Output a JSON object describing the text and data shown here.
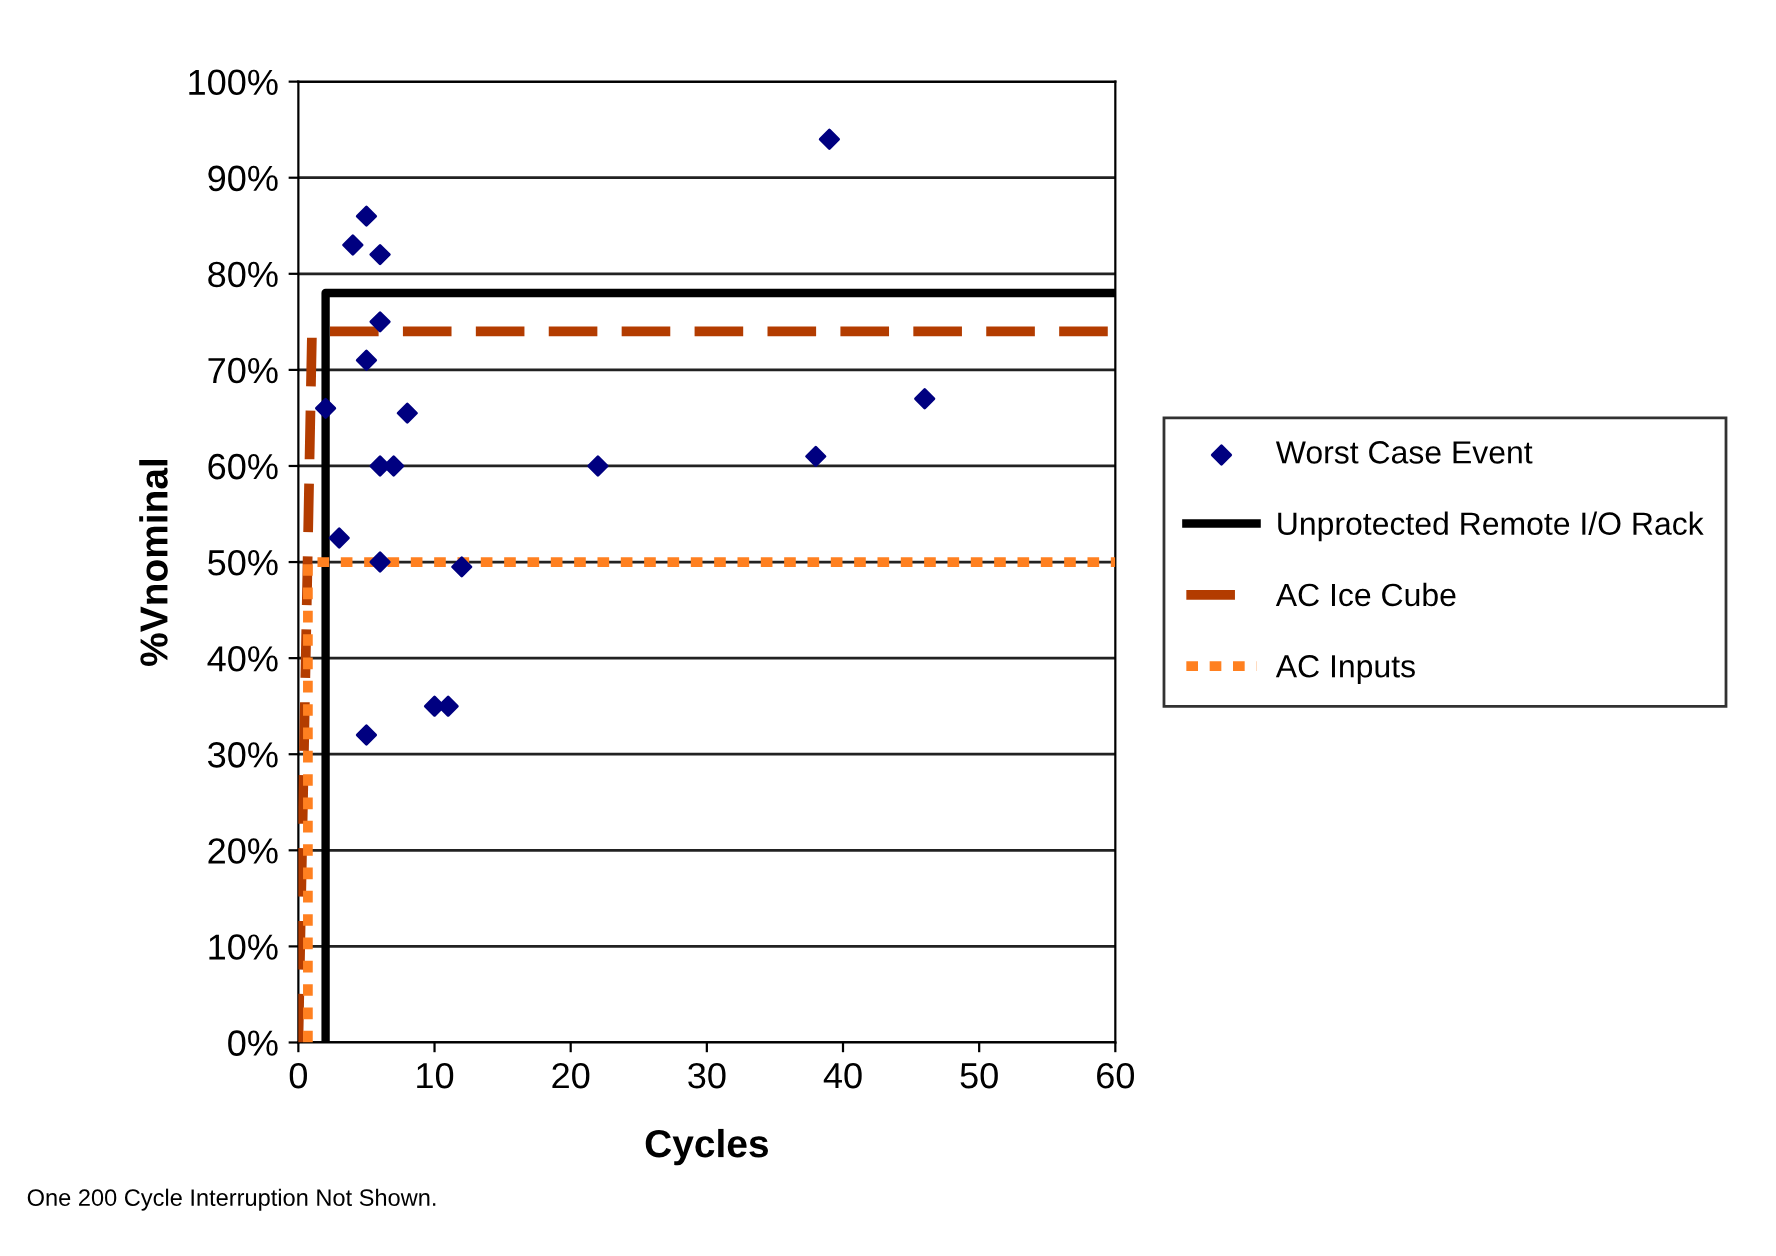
{
  "chart_data": {
    "type": "scatter",
    "xlabel": "Cycles",
    "ylabel": "%Vnominal",
    "xlim": [
      0,
      60
    ],
    "xticks": [
      0,
      10,
      20,
      30,
      40,
      50,
      60
    ],
    "ylim": [
      0,
      100
    ],
    "yticks": [
      {
        "value": 0,
        "label": "0%"
      },
      {
        "value": 10,
        "label": "10%"
      },
      {
        "value": 20,
        "label": "20%"
      },
      {
        "value": 30,
        "label": "30%"
      },
      {
        "value": 40,
        "label": "40%"
      },
      {
        "value": 50,
        "label": "50%"
      },
      {
        "value": 60,
        "label": "60%"
      },
      {
        "value": 70,
        "label": "70%"
      },
      {
        "value": 80,
        "label": "80%"
      },
      {
        "value": 90,
        "label": "90%"
      },
      {
        "value": 100,
        "label": "100%"
      }
    ],
    "grid": "y",
    "legend": "right",
    "annotations": [
      "One 200 Cycle Interruption Not Shown."
    ],
    "series": [
      {
        "name": "Worst Case Event",
        "marker": "diamond",
        "color": "#000080",
        "x": [
          5,
          4,
          6,
          6,
          5,
          2,
          8,
          6,
          7,
          3,
          6,
          12,
          10,
          11,
          5,
          22,
          38,
          46,
          39
        ],
        "values": [
          86,
          83,
          82,
          75,
          71,
          66,
          65.5,
          60,
          60,
          52.5,
          50,
          49.5,
          35,
          35,
          32,
          60,
          61,
          67,
          94
        ]
      },
      {
        "name": "Unprotected Remote I/O Rack",
        "type": "line",
        "line_style": "solid",
        "color": "#000000",
        "x": [
          2,
          2,
          60
        ],
        "values": [
          0,
          78,
          78
        ]
      },
      {
        "name": "AC Ice Cube",
        "type": "line",
        "line_style": "dashed",
        "color": "#b33c00",
        "x": [
          0,
          1,
          60
        ],
        "values": [
          0,
          74,
          74
        ]
      },
      {
        "name": "AC Inputs",
        "type": "line",
        "line_style": "dotted",
        "color": "#ff8020",
        "x": [
          0.7,
          0.7,
          60
        ],
        "values": [
          0,
          50,
          50
        ]
      }
    ]
  }
}
